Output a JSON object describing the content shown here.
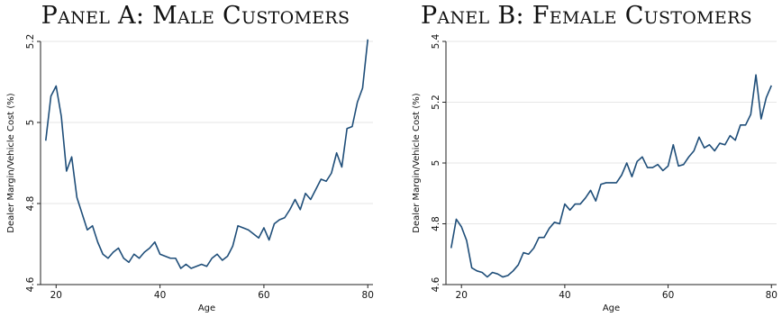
{
  "panels": [
    {
      "title": "Panel A: Male Customers"
    },
    {
      "title": "Panel B: Female Customers"
    }
  ],
  "chart_data": [
    {
      "type": "line",
      "title": "Panel A: Male Customers",
      "xlabel": "Age",
      "ylabel": "Dealer Margin/Vehicle Cost (%)",
      "xlim": [
        17,
        81
      ],
      "ylim": [
        4.6,
        5.2
      ],
      "xticks": [
        "20",
        "40",
        "60",
        "80"
      ],
      "yticks": [
        "4.6",
        "4.8",
        "5",
        "5.2"
      ],
      "grid": true,
      "color": "#1f4e79",
      "x": [
        18,
        19,
        20,
        21,
        22,
        23,
        24,
        25,
        26,
        27,
        28,
        29,
        30,
        31,
        32,
        33,
        34,
        35,
        36,
        37,
        38,
        39,
        40,
        41,
        42,
        43,
        44,
        45,
        46,
        47,
        48,
        49,
        50,
        51,
        52,
        53,
        54,
        55,
        56,
        57,
        58,
        59,
        60,
        61,
        62,
        63,
        64,
        65,
        66,
        67,
        68,
        69,
        70,
        71,
        72,
        73,
        74,
        75,
        76,
        77,
        78,
        79,
        80
      ],
      "values": [
        4.955,
        5.065,
        5.09,
        5.015,
        4.88,
        4.915,
        4.815,
        4.775,
        4.735,
        4.745,
        4.705,
        4.675,
        4.665,
        4.68,
        4.69,
        4.665,
        4.655,
        4.675,
        4.665,
        4.68,
        4.69,
        4.705,
        4.675,
        4.67,
        4.665,
        4.665,
        4.64,
        4.65,
        4.64,
        4.645,
        4.65,
        4.645,
        4.665,
        4.675,
        4.66,
        4.67,
        4.695,
        4.745,
        4.74,
        4.735,
        4.725,
        4.715,
        4.74,
        4.71,
        4.75,
        4.76,
        4.765,
        4.785,
        4.81,
        4.785,
        4.825,
        4.81,
        4.835,
        4.86,
        4.855,
        4.875,
        4.925,
        4.89,
        4.985,
        4.99,
        5.05,
        5.085,
        5.205
      ]
    },
    {
      "type": "line",
      "title": "Panel B: Female Customers",
      "xlabel": "Age",
      "ylabel": "Dealer Margin/Vehicle Cost (%)",
      "xlim": [
        17,
        81
      ],
      "ylim": [
        4.6,
        5.4
      ],
      "xticks": [
        "20",
        "40",
        "60",
        "80"
      ],
      "yticks": [
        "4.6",
        "4.8",
        "5",
        "5.2",
        "5.4"
      ],
      "grid": true,
      "color": "#1f4e79",
      "x": [
        18,
        19,
        20,
        21,
        22,
        23,
        24,
        25,
        26,
        27,
        28,
        29,
        30,
        31,
        32,
        33,
        34,
        35,
        36,
        37,
        38,
        39,
        40,
        41,
        42,
        43,
        44,
        45,
        46,
        47,
        48,
        49,
        50,
        51,
        52,
        53,
        54,
        55,
        56,
        57,
        58,
        59,
        60,
        61,
        62,
        63,
        64,
        65,
        66,
        67,
        68,
        69,
        70,
        71,
        72,
        73,
        74,
        75,
        76,
        77,
        78,
        79,
        80
      ],
      "values": [
        4.72,
        4.815,
        4.79,
        4.745,
        4.655,
        4.645,
        4.64,
        4.625,
        4.64,
        4.635,
        4.625,
        4.63,
        4.645,
        4.665,
        4.705,
        4.7,
        4.72,
        4.755,
        4.755,
        4.785,
        4.805,
        4.8,
        4.865,
        4.845,
        4.865,
        4.865,
        4.885,
        4.91,
        4.875,
        4.93,
        4.935,
        4.935,
        4.935,
        4.96,
        5.0,
        4.955,
        5.005,
        5.02,
        4.985,
        4.985,
        4.995,
        4.975,
        4.99,
        5.06,
        4.99,
        4.995,
        5.02,
        5.04,
        5.085,
        5.05,
        5.06,
        5.04,
        5.065,
        5.06,
        5.09,
        5.075,
        5.125,
        5.125,
        5.16,
        5.29,
        5.145,
        5.215,
        5.255
      ]
    }
  ]
}
